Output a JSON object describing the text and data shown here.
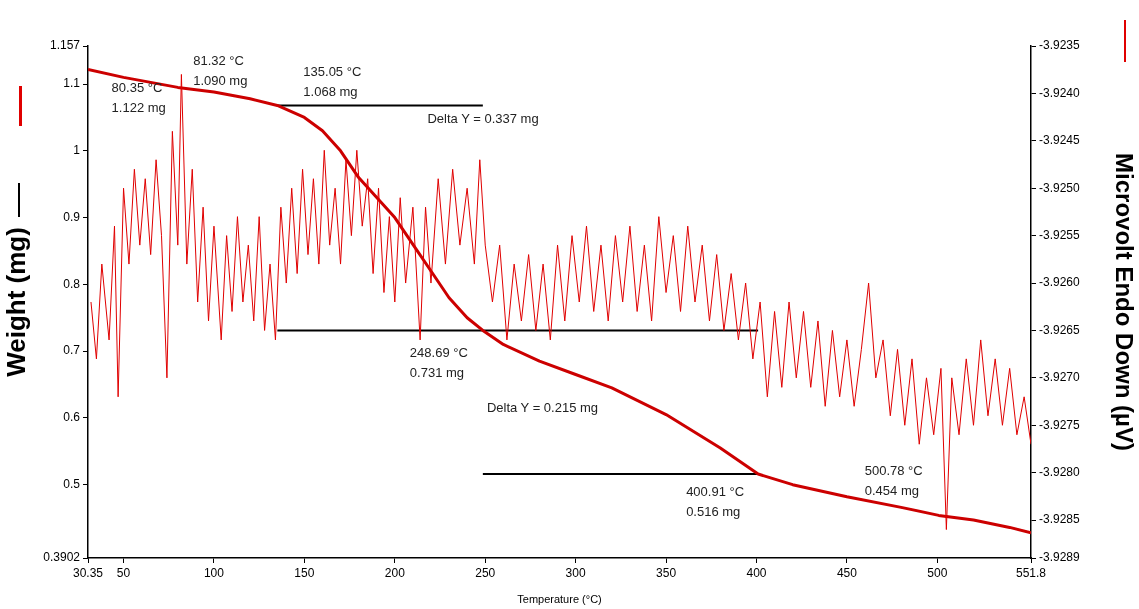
{
  "chart_data": {
    "type": "line",
    "xlabel": "Temperature (°C)",
    "ylabel": "Weight (mg)",
    "y2label": "Microvolt Endo Down (µV)",
    "xlim": [
      30.35,
      551.8
    ],
    "xticks": [
      30.35,
      50,
      100,
      150,
      200,
      250,
      300,
      350,
      400,
      450,
      500,
      551.8
    ],
    "ylim": [
      0.3902,
      1.157
    ],
    "yticks": [
      0.3902,
      0.5,
      0.6,
      0.7,
      0.8,
      0.9,
      1.0,
      1.1,
      1.157
    ],
    "y2lim": [
      -3.9289,
      -3.9235
    ],
    "y2ticks": [
      -3.9289,
      {
        "value": -3.9285,
        "label": "-3.9285"
      },
      {
        "value": -3.928,
        "label": "-3.9280"
      },
      -3.9275,
      {
        "value": -3.927,
        "label": "-3.9270"
      },
      -3.9265,
      {
        "value": -3.926,
        "label": "-3.9260"
      },
      -3.9255,
      {
        "value": -3.925,
        "label": "-3.9250"
      },
      -3.9245,
      {
        "value": -3.924,
        "label": "-3.9240"
      },
      -3.9235
    ],
    "grid": false,
    "legend": false,
    "marker": "none",
    "line_style": "solid",
    "series": [
      {
        "type": "line",
        "axis": "y2",
        "color": "#e00000",
        "x": [
          32,
          35,
          38,
          42,
          45,
          47,
          50,
          53,
          56,
          59,
          62,
          65,
          68,
          71,
          74,
          77,
          80,
          82,
          85,
          88,
          91,
          94,
          97,
          100,
          104,
          107,
          110,
          113,
          116,
          119,
          122,
          125,
          128,
          131,
          134,
          137,
          140,
          143,
          146,
          149,
          152,
          155,
          158,
          161,
          164,
          167,
          170,
          173,
          176,
          179,
          182,
          185,
          188,
          191,
          194,
          197,
          200,
          203,
          206,
          210,
          214,
          217,
          220,
          224,
          228,
          232,
          236,
          240,
          244,
          247,
          250,
          254,
          258,
          262,
          266,
          270,
          274,
          278,
          282,
          286,
          290,
          294,
          298,
          302,
          306,
          310,
          314,
          318,
          322,
          326,
          330,
          334,
          338,
          342,
          346,
          350,
          354,
          358,
          362,
          366,
          370,
          374,
          378,
          382,
          386,
          390,
          394,
          398,
          402,
          406,
          410,
          414,
          418,
          422,
          426,
          430,
          434,
          438,
          442,
          446,
          450,
          454,
          458,
          462,
          466,
          470,
          474,
          478,
          482,
          486,
          490,
          494,
          498,
          502,
          505,
          508,
          512,
          516,
          520,
          524,
          528,
          532,
          536,
          540,
          544,
          548,
          551.8
        ],
        "values": [
          -3.9262,
          -3.9268,
          -3.9258,
          -3.9266,
          -3.9254,
          -3.9272,
          -3.925,
          -3.9258,
          -3.9248,
          -3.9256,
          -3.9249,
          -3.9257,
          -3.9247,
          -3.9255,
          -3.927,
          -3.9244,
          -3.9256,
          -3.9238,
          -3.9258,
          -3.9248,
          -3.9262,
          -3.9252,
          -3.9264,
          -3.9254,
          -3.9266,
          -3.9255,
          -3.9263,
          -3.9253,
          -3.9262,
          -3.9256,
          -3.9264,
          -3.9253,
          -3.9265,
          -3.9258,
          -3.9266,
          -3.9252,
          -3.926,
          -3.925,
          -3.9259,
          -3.9248,
          -3.9257,
          -3.9249,
          -3.9258,
          -3.9246,
          -3.9256,
          -3.925,
          -3.9258,
          -3.9247,
          -3.9255,
          -3.9246,
          -3.9254,
          -3.9249,
          -3.9259,
          -3.925,
          -3.9261,
          -3.9253,
          -3.9262,
          -3.9251,
          -3.926,
          -3.9252,
          -3.9266,
          -3.9252,
          -3.926,
          -3.9249,
          -3.9258,
          -3.9248,
          -3.9256,
          -3.925,
          -3.9258,
          -3.9247,
          -3.9256,
          -3.9262,
          -3.9256,
          -3.9266,
          -3.9258,
          -3.9264,
          -3.9257,
          -3.9265,
          -3.9258,
          -3.9266,
          -3.9256,
          -3.9264,
          -3.9255,
          -3.9262,
          -3.9254,
          -3.9263,
          -3.9256,
          -3.9264,
          -3.9255,
          -3.9262,
          -3.9254,
          -3.9263,
          -3.9256,
          -3.9264,
          -3.9253,
          -3.9261,
          -3.9255,
          -3.9263,
          -3.9254,
          -3.9262,
          -3.9256,
          -3.9264,
          -3.9257,
          -3.9265,
          -3.9259,
          -3.9266,
          -3.926,
          -3.9268,
          -3.9262,
          -3.9272,
          -3.9263,
          -3.9271,
          -3.9262,
          -3.927,
          -3.9263,
          -3.9271,
          -3.9264,
          -3.9273,
          -3.9265,
          -3.9272,
          -3.9266,
          -3.9273,
          -3.9267,
          -3.926,
          -3.927,
          -3.9266,
          -3.9274,
          -3.9267,
          -3.9275,
          -3.9268,
          -3.9277,
          -3.927,
          -3.9276,
          -3.9269,
          -3.9286,
          -3.927,
          -3.9276,
          -3.9268,
          -3.9275,
          -3.9266,
          -3.9274,
          -3.9268,
          -3.9275,
          -3.9269,
          -3.9276,
          -3.9272,
          -3.9277
        ]
      },
      {
        "type": "line",
        "axis": "y",
        "color": "#cc0000",
        "x": [
          30.35,
          50,
          80,
          100,
          120,
          135.05,
          150,
          160,
          170,
          180,
          190,
          200,
          210,
          220,
          230,
          240,
          248.69,
          260,
          280,
          300,
          320,
          350,
          380,
          400.91,
          420,
          450,
          480,
          500.78,
          520,
          540,
          551.8
        ],
        "values": [
          1.122,
          1.11,
          1.095,
          1.088,
          1.078,
          1.068,
          1.05,
          1.03,
          1.0,
          0.96,
          0.93,
          0.9,
          0.86,
          0.82,
          0.78,
          0.75,
          0.731,
          0.71,
          0.685,
          0.665,
          0.645,
          0.605,
          0.555,
          0.516,
          0.5,
          0.482,
          0.466,
          0.454,
          0.447,
          0.436,
          0.428
        ]
      },
      {
        "type": "line",
        "axis": "y",
        "color": "#000000",
        "x": [
          135.05,
          248.69
        ],
        "values": [
          1.068,
          1.068
        ]
      },
      {
        "type": "line",
        "axis": "y",
        "color": "#000000",
        "x": [
          135.05,
          400.91
        ],
        "values": [
          0.731,
          0.731
        ]
      },
      {
        "type": "line",
        "axis": "y",
        "color": "#000000",
        "x": [
          248.69,
          400.91
        ],
        "values": [
          0.516,
          0.516
        ]
      }
    ],
    "annotations": [
      {
        "text": "81.32 °C\n1.090 mg",
        "x": 81.32,
        "y": 1.09
      },
      {
        "text": "135.05 °C\n1.068 mg",
        "x": 135.05,
        "y": 1.068
      },
      {
        "text": "248.69 °C\n0.731 mg",
        "x": 248.69,
        "y": 0.731
      },
      {
        "text": "400.91 °C\n0.516 mg",
        "x": 400.91,
        "y": 0.516
      },
      {
        "text": "500.78 °C\n0.454 mg",
        "x": 500.78,
        "y": 0.454
      },
      "80.35 °C\n1.122 mg",
      "Delta Y = 0.337 mg",
      "Delta Y = 0.215 mg"
    ]
  }
}
